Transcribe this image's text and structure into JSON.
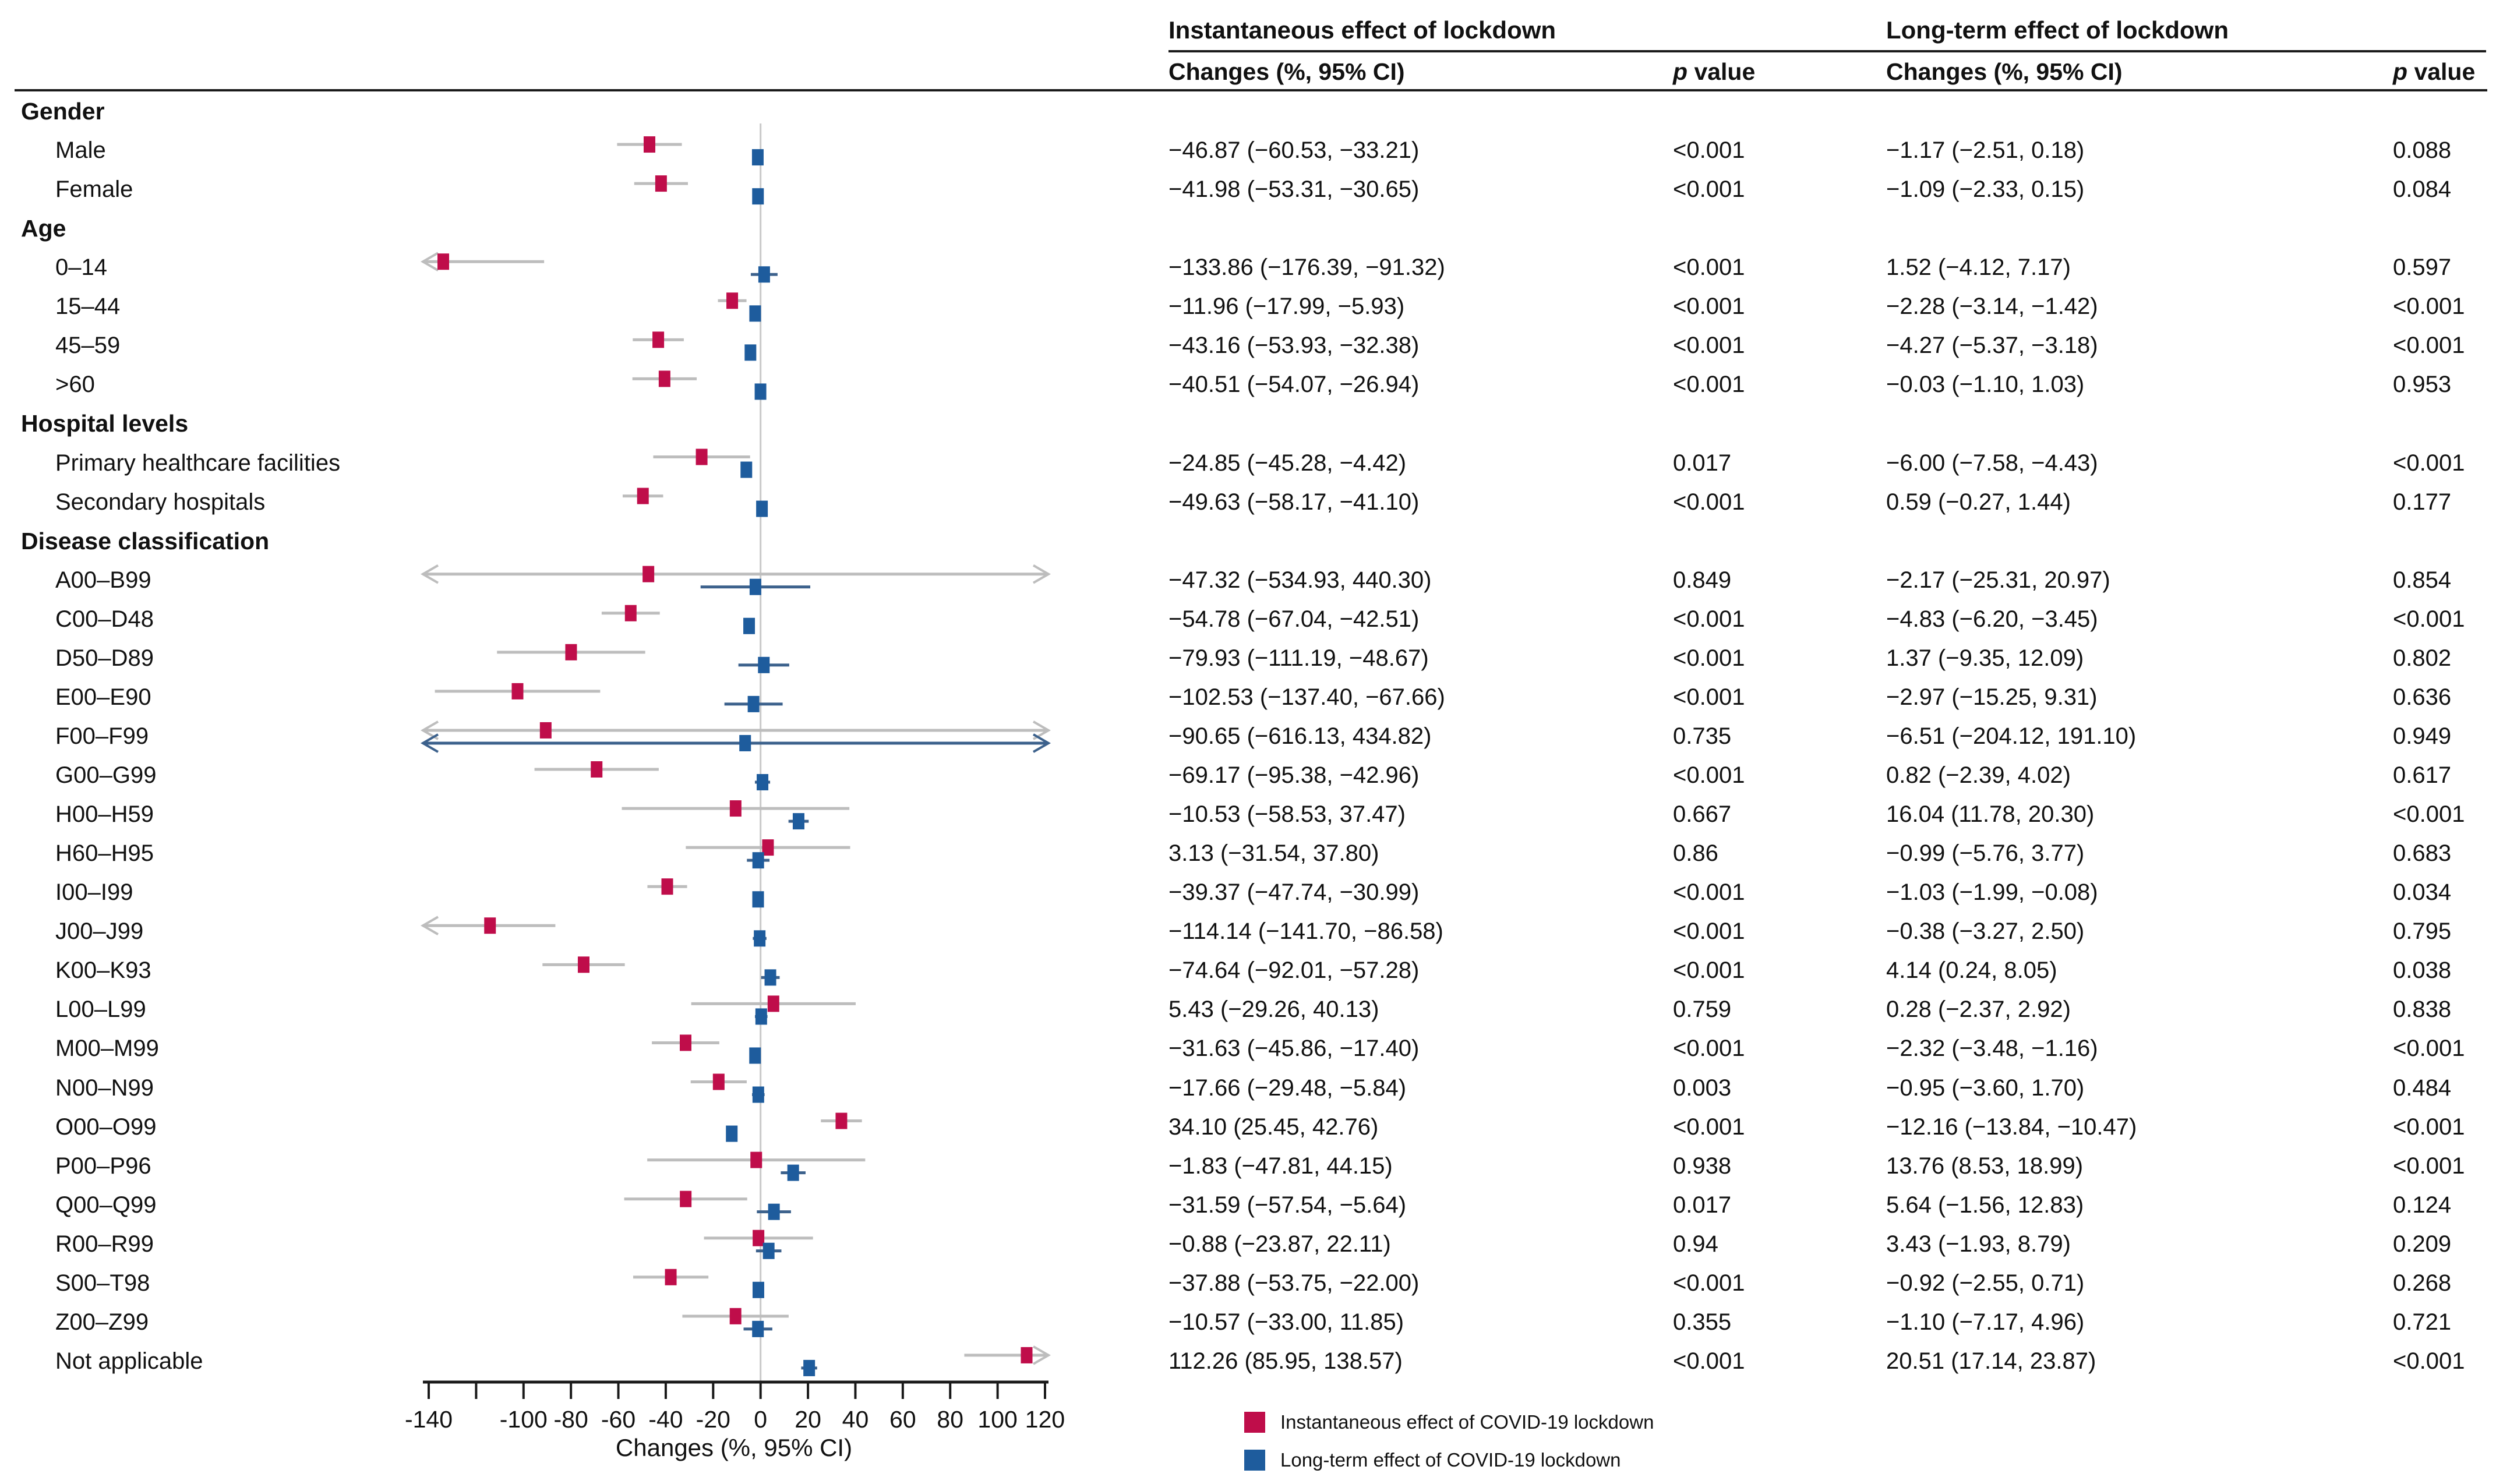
{
  "header": {
    "instantaneous": "Instantaneous effect of lockdown",
    "longterm": "Long-term effect of lockdown",
    "changes": "Changes (%, 95% CI)",
    "p_italic": "p",
    "p_rest": " value"
  },
  "axis": {
    "label": "Changes (%, 95% CI)",
    "min": -140,
    "max": 120,
    "ticks": [
      {
        "v": -140,
        "label": "-140"
      },
      {
        "v": -120,
        "label": ""
      },
      {
        "v": -100,
        "label": "-100"
      },
      {
        "v": -80,
        "label": "-80"
      },
      {
        "v": -60,
        "label": "-60"
      },
      {
        "v": -40,
        "label": "-40"
      },
      {
        "v": -20,
        "label": "-20"
      },
      {
        "v": 0,
        "label": "0"
      },
      {
        "v": 20,
        "label": "20"
      },
      {
        "v": 40,
        "label": "40"
      },
      {
        "v": 60,
        "label": "60"
      },
      {
        "v": 80,
        "label": "80"
      },
      {
        "v": 100,
        "label": "100"
      },
      {
        "v": 120,
        "label": "120"
      }
    ]
  },
  "colors": {
    "instantaneous": "#bf0d4a",
    "longterm": "#1e5c9d",
    "inst_whisker": "#bdbdbd",
    "lt_whisker": "#3c618c",
    "zero_line": "#c9c9c9",
    "axis": "#1a1a1a"
  },
  "legend": [
    {
      "label": "Instantaneous effect of COVID-19 lockdown",
      "color": "#bf0d4a"
    },
    {
      "label": "Long-term effect of COVID-19 lockdown",
      "color": "#1e5c9d"
    }
  ],
  "chart_data": {
    "type": "forest",
    "note": "Two series per row: instantaneous (crimson) and long-term (blue) effect, values are % change with 95% CI",
    "xlabel": "Changes (%, 95% CI)",
    "xlim": [
      -140,
      120
    ],
    "rows": [
      {
        "label": "Gender",
        "group": true
      },
      {
        "label": "Male",
        "group": false,
        "inst": {
          "est": -46.87,
          "lo": -60.53,
          "hi": -33.21,
          "ci": "−46.87 (−60.53, −33.21)",
          "p": "<0.001"
        },
        "lt": {
          "est": -1.17,
          "lo": -2.51,
          "hi": 0.18,
          "ci": "−1.17 (−2.51, 0.18)",
          "p": "0.088"
        }
      },
      {
        "label": "Female",
        "group": false,
        "inst": {
          "est": -41.98,
          "lo": -53.31,
          "hi": -30.65,
          "ci": "−41.98 (−53.31, −30.65)",
          "p": "<0.001"
        },
        "lt": {
          "est": -1.09,
          "lo": -2.33,
          "hi": 0.15,
          "ci": "−1.09 (−2.33, 0.15)",
          "p": "0.084"
        }
      },
      {
        "label": "Age",
        "group": true
      },
      {
        "label": "0–14",
        "group": false,
        "inst": {
          "est": -133.86,
          "lo": -176.39,
          "hi": -91.32,
          "ci": "−133.86 (−176.39, −91.32)",
          "p": "<0.001"
        },
        "lt": {
          "est": 1.52,
          "lo": -4.12,
          "hi": 7.17,
          "ci": "1.52 (−4.12, 7.17)",
          "p": "0.597"
        }
      },
      {
        "label": "15–44",
        "group": false,
        "inst": {
          "est": -11.96,
          "lo": -17.99,
          "hi": -5.93,
          "ci": "−11.96 (−17.99, −5.93)",
          "p": "<0.001"
        },
        "lt": {
          "est": -2.28,
          "lo": -3.14,
          "hi": -1.42,
          "ci": "−2.28 (−3.14, −1.42)",
          "p": "<0.001"
        }
      },
      {
        "label": "45–59",
        "group": false,
        "inst": {
          "est": -43.16,
          "lo": -53.93,
          "hi": -32.38,
          "ci": "−43.16 (−53.93, −32.38)",
          "p": "<0.001"
        },
        "lt": {
          "est": -4.27,
          "lo": -5.37,
          "hi": -3.18,
          "ci": "−4.27 (−5.37, −3.18)",
          "p": "<0.001"
        }
      },
      {
        "label": ">60",
        "group": false,
        "inst": {
          "est": -40.51,
          "lo": -54.07,
          "hi": -26.94,
          "ci": "−40.51 (−54.07, −26.94)",
          "p": "<0.001"
        },
        "lt": {
          "est": -0.03,
          "lo": -1.1,
          "hi": 1.03,
          "ci": "−0.03 (−1.10, 1.03)",
          "p": "0.953"
        }
      },
      {
        "label": "Hospital levels",
        "group": true
      },
      {
        "label": "Primary healthcare facilities",
        "group": false,
        "inst": {
          "est": -24.85,
          "lo": -45.28,
          "hi": -4.42,
          "ci": "−24.85 (−45.28, −4.42)",
          "p": "0.017"
        },
        "lt": {
          "est": -6.0,
          "lo": -7.58,
          "hi": -4.43,
          "ci": "−6.00 (−7.58, −4.43)",
          "p": "<0.001"
        }
      },
      {
        "label": "Secondary hospitals",
        "group": false,
        "inst": {
          "est": -49.63,
          "lo": -58.17,
          "hi": -41.1,
          "ci": "−49.63 (−58.17, −41.10)",
          "p": "<0.001"
        },
        "lt": {
          "est": 0.59,
          "lo": -0.27,
          "hi": 1.44,
          "ci": "0.59 (−0.27, 1.44)",
          "p": "0.177"
        }
      },
      {
        "label": "Disease classification",
        "group": true
      },
      {
        "label": "A00–B99",
        "group": false,
        "inst": {
          "est": -47.32,
          "lo": -534.93,
          "hi": 440.3,
          "ci": "−47.32 (−534.93, 440.30)",
          "p": "0.849"
        },
        "lt": {
          "est": -2.17,
          "lo": -25.31,
          "hi": 20.97,
          "ci": "−2.17 (−25.31, 20.97)",
          "p": "0.854"
        }
      },
      {
        "label": "C00–D48",
        "group": false,
        "inst": {
          "est": -54.78,
          "lo": -67.04,
          "hi": -42.51,
          "ci": "−54.78 (−67.04, −42.51)",
          "p": "<0.001"
        },
        "lt": {
          "est": -4.83,
          "lo": -6.2,
          "hi": -3.45,
          "ci": "−4.83 (−6.20, −3.45)",
          "p": "<0.001"
        }
      },
      {
        "label": "D50–D89",
        "group": false,
        "inst": {
          "est": -79.93,
          "lo": -111.19,
          "hi": -48.67,
          "ci": "−79.93 (−111.19, −48.67)",
          "p": "<0.001"
        },
        "lt": {
          "est": 1.37,
          "lo": -9.35,
          "hi": 12.09,
          "ci": "1.37 (−9.35, 12.09)",
          "p": "0.802"
        }
      },
      {
        "label": "E00–E90",
        "group": false,
        "inst": {
          "est": -102.53,
          "lo": -137.4,
          "hi": -67.66,
          "ci": "−102.53 (−137.40, −67.66)",
          "p": "<0.001"
        },
        "lt": {
          "est": -2.97,
          "lo": -15.25,
          "hi": 9.31,
          "ci": "−2.97 (−15.25, 9.31)",
          "p": "0.636"
        }
      },
      {
        "label": "F00–F99",
        "group": false,
        "inst": {
          "est": -90.65,
          "lo": -616.13,
          "hi": 434.82,
          "ci": "−90.65 (−616.13, 434.82)",
          "p": "0.735"
        },
        "lt": {
          "est": -6.51,
          "lo": -204.12,
          "hi": 191.1,
          "ci": "−6.51 (−204.12, 191.10)",
          "p": "0.949"
        }
      },
      {
        "label": "G00–G99",
        "group": false,
        "inst": {
          "est": -69.17,
          "lo": -95.38,
          "hi": -42.96,
          "ci": "−69.17 (−95.38, −42.96)",
          "p": "<0.001"
        },
        "lt": {
          "est": 0.82,
          "lo": -2.39,
          "hi": 4.02,
          "ci": "0.82 (−2.39, 4.02)",
          "p": "0.617"
        }
      },
      {
        "label": "H00–H59",
        "group": false,
        "inst": {
          "est": -10.53,
          "lo": -58.53,
          "hi": 37.47,
          "ci": "−10.53 (−58.53, 37.47)",
          "p": "0.667"
        },
        "lt": {
          "est": 16.04,
          "lo": 11.78,
          "hi": 20.3,
          "ci": "16.04 (11.78, 20.30)",
          "p": "<0.001"
        }
      },
      {
        "label": "H60–H95",
        "group": false,
        "inst": {
          "est": 3.13,
          "lo": -31.54,
          "hi": 37.8,
          "ci": "3.13 (−31.54, 37.80)",
          "p": "0.86"
        },
        "lt": {
          "est": -0.99,
          "lo": -5.76,
          "hi": 3.77,
          "ci": "−0.99 (−5.76, 3.77)",
          "p": "0.683"
        }
      },
      {
        "label": "I00–I99",
        "group": false,
        "inst": {
          "est": -39.37,
          "lo": -47.74,
          "hi": -30.99,
          "ci": "−39.37 (−47.74, −30.99)",
          "p": "<0.001"
        },
        "lt": {
          "est": -1.03,
          "lo": -1.99,
          "hi": -0.08,
          "ci": "−1.03 (−1.99, −0.08)",
          "p": "0.034"
        }
      },
      {
        "label": "J00–J99",
        "group": false,
        "inst": {
          "est": -114.14,
          "lo": -141.7,
          "hi": -86.58,
          "ci": "−114.14 (−141.70, −86.58)",
          "p": "<0.001"
        },
        "lt": {
          "est": -0.38,
          "lo": -3.27,
          "hi": 2.5,
          "ci": "−0.38 (−3.27, 2.50)",
          "p": "0.795"
        }
      },
      {
        "label": "K00–K93",
        "group": false,
        "inst": {
          "est": -74.64,
          "lo": -92.01,
          "hi": -57.28,
          "ci": "−74.64 (−92.01, −57.28)",
          "p": "<0.001"
        },
        "lt": {
          "est": 4.14,
          "lo": 0.24,
          "hi": 8.05,
          "ci": "4.14 (0.24, 8.05)",
          "p": "0.038"
        }
      },
      {
        "label": "L00–L99",
        "group": false,
        "inst": {
          "est": 5.43,
          "lo": -29.26,
          "hi": 40.13,
          "ci": "5.43 (−29.26, 40.13)",
          "p": "0.759"
        },
        "lt": {
          "est": 0.28,
          "lo": -2.37,
          "hi": 2.92,
          "ci": "0.28 (−2.37, 2.92)",
          "p": "0.838"
        }
      },
      {
        "label": "M00–M99",
        "group": false,
        "inst": {
          "est": -31.63,
          "lo": -45.86,
          "hi": -17.4,
          "ci": "−31.63 (−45.86, −17.40)",
          "p": "<0.001"
        },
        "lt": {
          "est": -2.32,
          "lo": -3.48,
          "hi": -1.16,
          "ci": "−2.32 (−3.48, −1.16)",
          "p": "<0.001"
        }
      },
      {
        "label": "N00–N99",
        "group": false,
        "inst": {
          "est": -17.66,
          "lo": -29.48,
          "hi": -5.84,
          "ci": "−17.66 (−29.48, −5.84)",
          "p": "0.003"
        },
        "lt": {
          "est": -0.95,
          "lo": -3.6,
          "hi": 1.7,
          "ci": "−0.95 (−3.60, 1.70)",
          "p": "0.484"
        }
      },
      {
        "label": "O00–O99",
        "group": false,
        "inst": {
          "est": 34.1,
          "lo": 25.45,
          "hi": 42.76,
          "ci": "34.10 (25.45, 42.76)",
          "p": "<0.001"
        },
        "lt": {
          "est": -12.16,
          "lo": -13.84,
          "hi": -10.47,
          "ci": "−12.16 (−13.84, −10.47)",
          "p": "<0.001"
        }
      },
      {
        "label": "P00–P96",
        "group": false,
        "inst": {
          "est": -1.83,
          "lo": -47.81,
          "hi": 44.15,
          "ci": "−1.83 (−47.81, 44.15)",
          "p": "0.938"
        },
        "lt": {
          "est": 13.76,
          "lo": 8.53,
          "hi": 18.99,
          "ci": "13.76 (8.53, 18.99)",
          "p": "<0.001"
        }
      },
      {
        "label": "Q00–Q99",
        "group": false,
        "inst": {
          "est": -31.59,
          "lo": -57.54,
          "hi": -5.64,
          "ci": "−31.59 (−57.54, −5.64)",
          "p": "0.017"
        },
        "lt": {
          "est": 5.64,
          "lo": -1.56,
          "hi": 12.83,
          "ci": "5.64 (−1.56, 12.83)",
          "p": "0.124"
        }
      },
      {
        "label": "R00–R99",
        "group": false,
        "inst": {
          "est": -0.88,
          "lo": -23.87,
          "hi": 22.11,
          "ci": "−0.88 (−23.87, 22.11)",
          "p": "0.94"
        },
        "lt": {
          "est": 3.43,
          "lo": -1.93,
          "hi": 8.79,
          "ci": "3.43 (−1.93, 8.79)",
          "p": "0.209"
        }
      },
      {
        "label": "S00–T98",
        "group": false,
        "inst": {
          "est": -37.88,
          "lo": -53.75,
          "hi": -22.0,
          "ci": "−37.88 (−53.75, −22.00)",
          "p": "<0.001"
        },
        "lt": {
          "est": -0.92,
          "lo": -2.55,
          "hi": 0.71,
          "ci": "−0.92 (−2.55, 0.71)",
          "p": "0.268"
        }
      },
      {
        "label": "Z00–Z99",
        "group": false,
        "inst": {
          "est": -10.57,
          "lo": -33.0,
          "hi": 11.85,
          "ci": "−10.57 (−33.00, 11.85)",
          "p": "0.355"
        },
        "lt": {
          "est": -1.1,
          "lo": -7.17,
          "hi": 4.96,
          "ci": "−1.10 (−7.17, 4.96)",
          "p": "0.721"
        }
      },
      {
        "label": "Not applicable",
        "group": false,
        "inst": {
          "est": 112.26,
          "lo": 85.95,
          "hi": 138.57,
          "ci": "112.26 (85.95, 138.57)",
          "p": "<0.001"
        },
        "lt": {
          "est": 20.51,
          "lo": 17.14,
          "hi": 23.87,
          "ci": "20.51 (17.14, 23.87)",
          "p": "<0.001"
        }
      }
    ]
  }
}
